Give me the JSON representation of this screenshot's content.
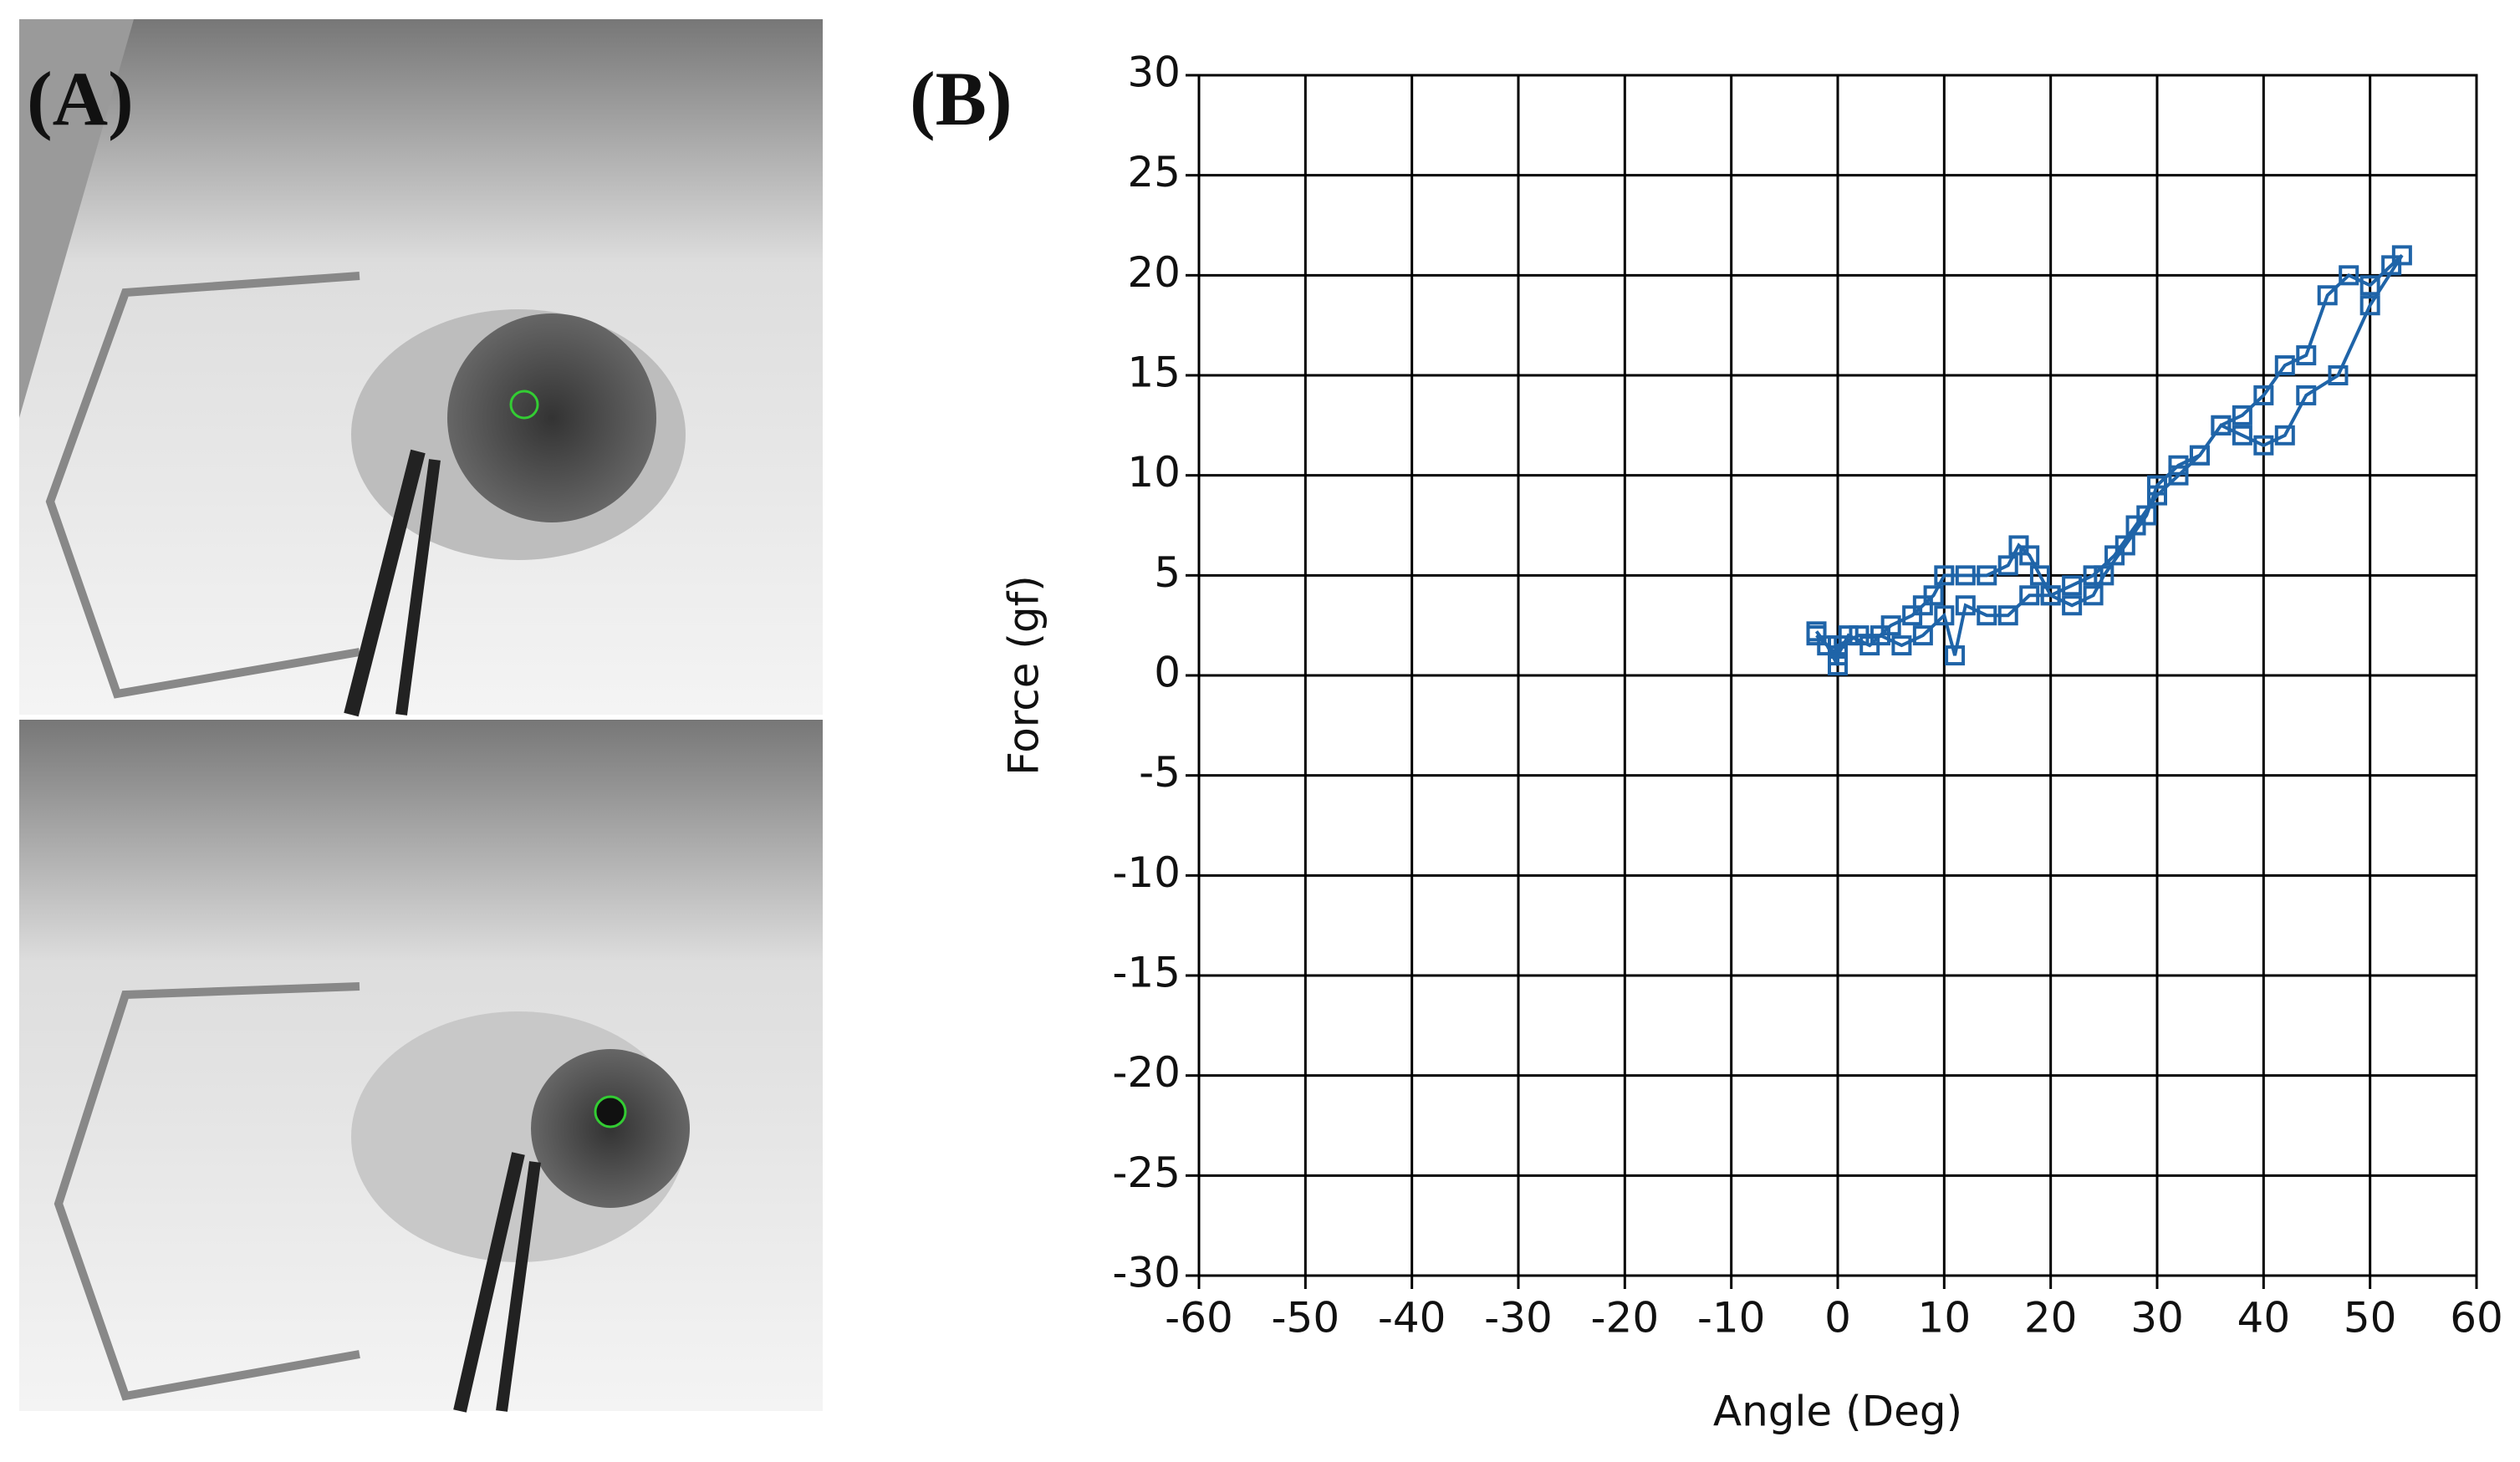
{
  "photo_panel": {
    "label": "(A)"
  },
  "chart_data": {
    "type": "line",
    "panel_label": "(B)",
    "x_label": "Angle (Deg)",
    "y_label": "Force (gf)",
    "x": [
      -2,
      -1,
      0,
      0,
      2,
      4,
      6,
      8,
      10,
      11,
      12,
      14,
      16,
      18,
      20,
      22,
      24,
      26,
      28,
      30,
      32,
      34,
      36,
      38,
      40,
      42,
      44,
      46,
      48,
      50,
      52,
      53,
      50,
      47,
      44,
      42,
      40,
      38,
      36,
      34,
      32,
      30,
      29,
      27,
      25,
      24,
      22,
      20,
      19,
      18,
      17,
      16,
      14,
      12,
      10,
      9,
      8,
      7,
      5,
      3,
      1,
      0,
      -2
    ],
    "values": [
      2.2,
      1.5,
      0.5,
      1.5,
      2,
      2,
      1.5,
      2,
      3,
      1,
      3.5,
      3,
      3,
      4,
      4,
      4.5,
      5,
      6,
      7.5,
      9,
      10,
      11,
      12.5,
      13,
      14,
      15.5,
      16,
      19,
      20,
      19.5,
      20.5,
      21,
      18.5,
      15,
      14,
      12,
      11.5,
      12,
      12.5,
      11,
      10.5,
      9.5,
      8,
      6.5,
      5,
      4,
      3.5,
      4,
      5,
      6,
      6.5,
      5.5,
      5,
      5,
      5,
      4,
      3.5,
      3,
      2.5,
      1.5,
      2,
      1,
      2
    ],
    "color": "#1f64a8",
    "xlim": [
      -60,
      60
    ],
    "ylim": [
      -30,
      30
    ],
    "xticks": [
      -60,
      -50,
      -40,
      -30,
      -20,
      -10,
      0,
      10,
      20,
      30,
      40,
      50,
      60
    ],
    "yticks": [
      -30,
      -25,
      -20,
      -15,
      -10,
      -5,
      0,
      5,
      10,
      15,
      20,
      25,
      30
    ],
    "grid": true
  }
}
